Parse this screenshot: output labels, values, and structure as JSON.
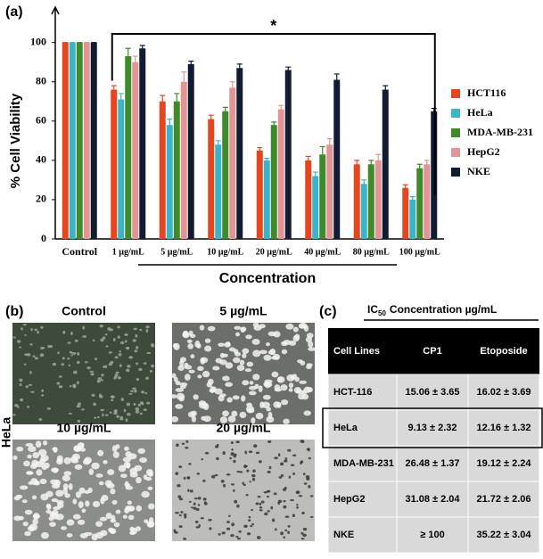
{
  "chart_data": {
    "type": "bar",
    "panel_label": "(a)",
    "y_label": "% Cell Viability",
    "x_label": "Concentration",
    "annotation": "*",
    "categories": [
      "Control",
      "1 µg/mL",
      "5 µg/mL",
      "10 µg/mL",
      "20 µg/mL",
      "40 µg/mL",
      "80 µg/mL",
      "100 µg/mL"
    ],
    "series": [
      {
        "name": "HCT116",
        "color": "#e5461e",
        "values": [
          100,
          76,
          70,
          61,
          45,
          40,
          38,
          26
        ],
        "errors": [
          0,
          2,
          3,
          2,
          1.5,
          2,
          2,
          1.5
        ]
      },
      {
        "name": "HeLa",
        "color": "#3bb4c8",
        "values": [
          100,
          71,
          58,
          48,
          40,
          32,
          28,
          20
        ],
        "errors": [
          0,
          3,
          3,
          2,
          1,
          2,
          2,
          1.5
        ]
      },
      {
        "name": "MDA-MB-231",
        "color": "#3f8a2a",
        "values": [
          100,
          93,
          70,
          65,
          58,
          43,
          38,
          36
        ],
        "errors": [
          0,
          4,
          4,
          2,
          1.5,
          4,
          2,
          2
        ]
      },
      {
        "name": "HepG2",
        "color": "#e39595",
        "values": [
          100,
          90,
          80,
          77,
          66,
          48,
          40,
          38
        ],
        "errors": [
          0,
          3,
          5,
          3,
          2,
          3,
          3,
          2
        ]
      },
      {
        "name": "NKE",
        "color": "#111c33",
        "values": [
          100,
          97,
          89,
          87,
          86,
          81,
          76,
          65
        ],
        "errors": [
          0,
          1.5,
          1.5,
          2,
          1.5,
          3,
          2,
          1.5
        ]
      }
    ],
    "ylim": [
      0,
      118
    ],
    "yticks": [
      0,
      20,
      40,
      60,
      80,
      100
    ],
    "legend": "right"
  },
  "images": {
    "panel_label": "(b)",
    "side_label": "HeLa",
    "labels": [
      "Control",
      "5 µg/mL",
      "10 µg/mL",
      "20 µg/mL"
    ]
  },
  "table": {
    "panel_label": "(c)",
    "title_prefix": "IC",
    "title_sub": "50",
    "title_rest": "Concentration µg/mL",
    "header": [
      "Cell Lines",
      "CP1",
      "Etoposide"
    ],
    "rows": [
      [
        "HCT-116",
        "15.06 ± 3.65",
        "16.02 ± 3.69"
      ],
      [
        "HeLa",
        "9.13 ± 2.32",
        "12.16 ± 1.32"
      ],
      [
        "MDA-MB-231",
        "26.48 ± 1.37",
        "19.12 ± 2.24"
      ],
      [
        "HepG2",
        "31.08 ± 2.04",
        "21.72 ± 2.06"
      ],
      [
        "NKE",
        "≥ 100",
        "35.22 ± 3.04"
      ]
    ]
  }
}
